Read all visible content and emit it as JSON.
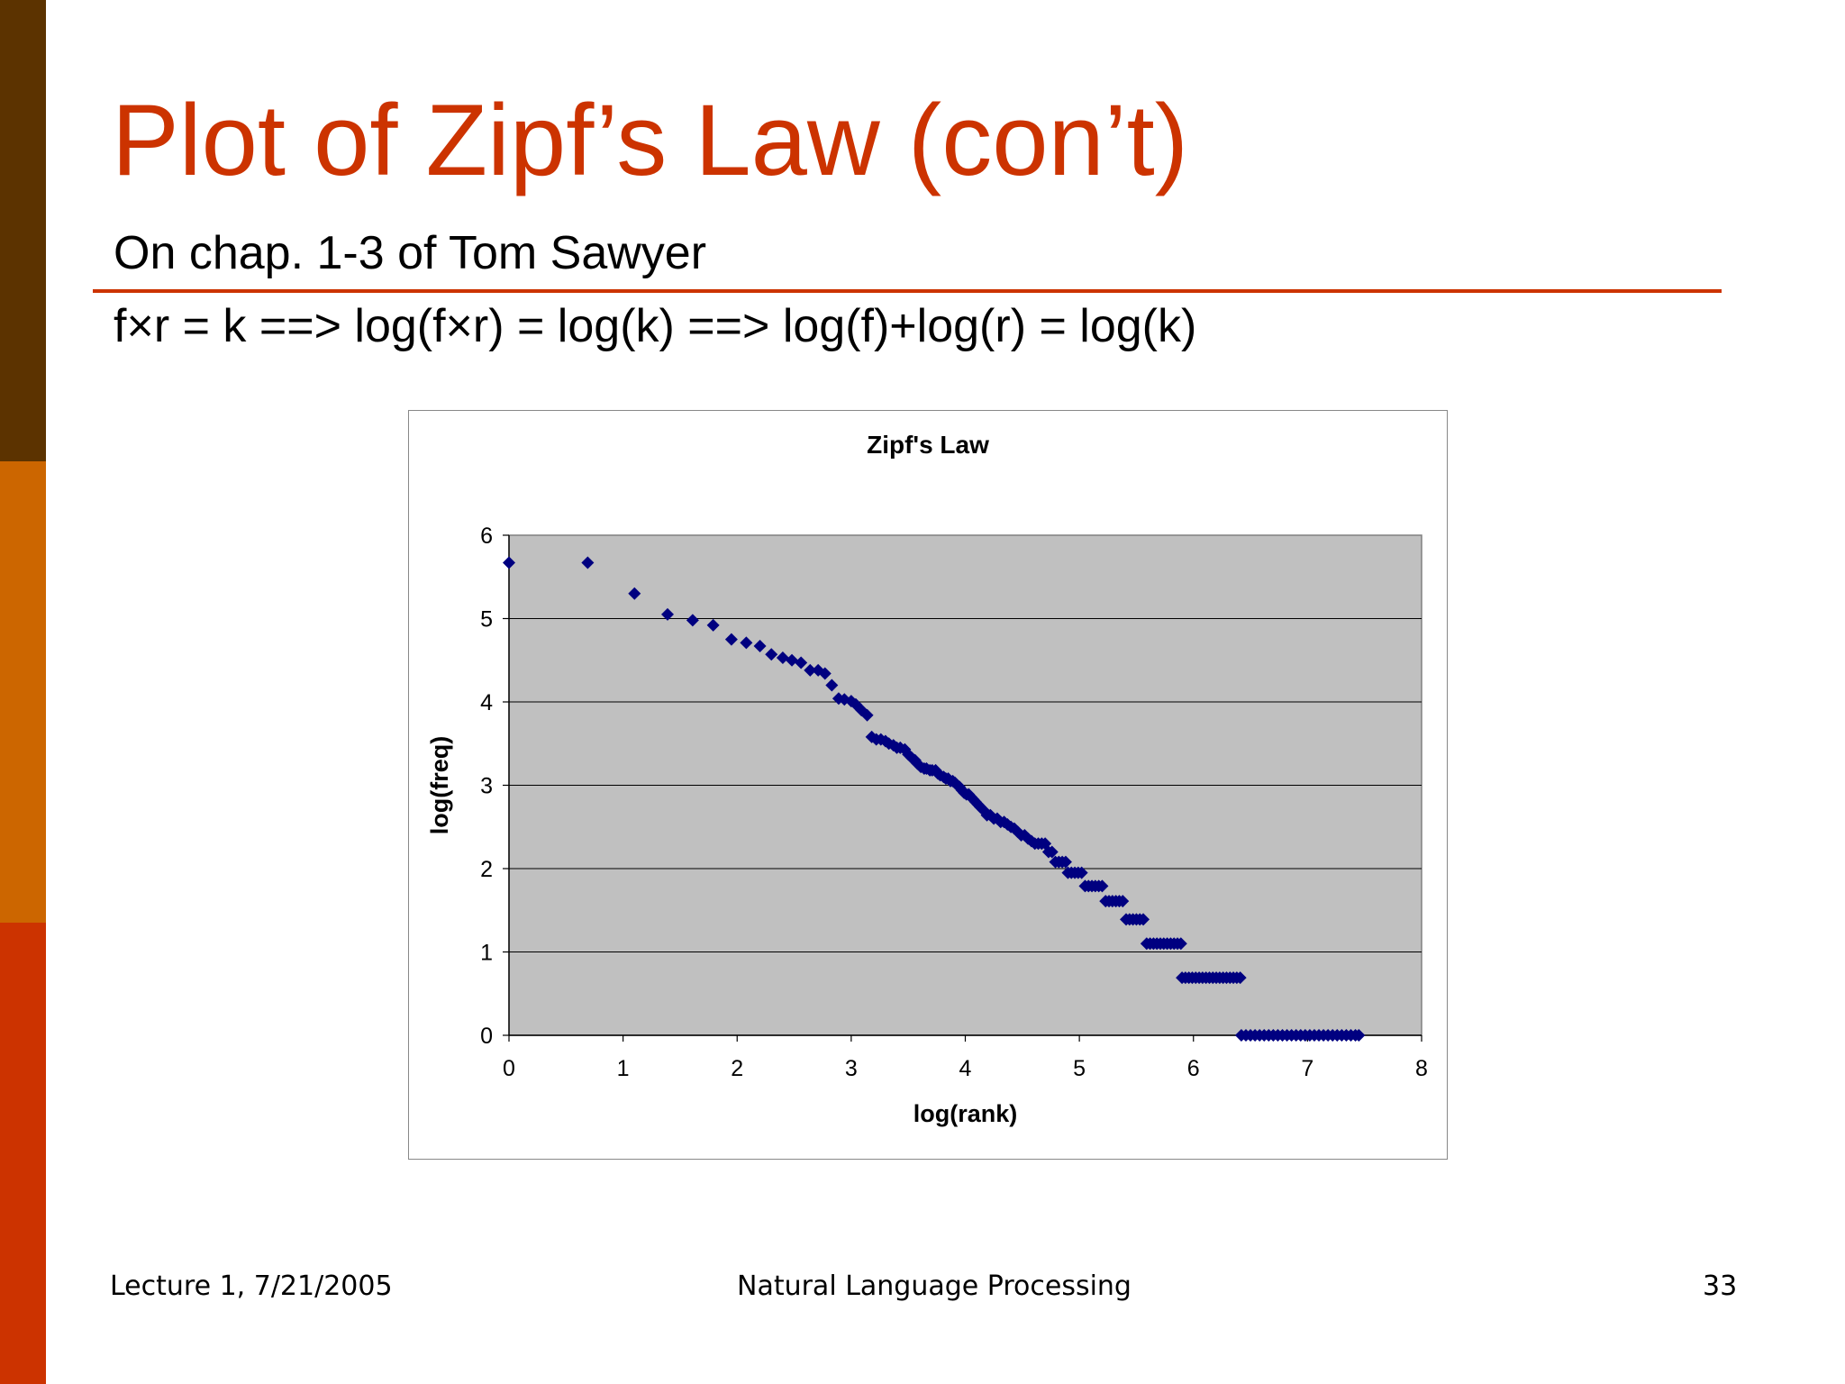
{
  "slide": {
    "title": "Plot of Zipf’s Law (con’t)",
    "subtitle": "On chap. 1-3 of Tom Sawyer",
    "formula": "f×r = k ==> log(f×r) = log(k) ==> log(f)+log(r) = log(k)",
    "footer_left": "Lecture 1, 7/21/2005",
    "footer_center": "Natural Language Processing",
    "page_number": "33"
  },
  "colors": {
    "sidebar_top": "#5c3300",
    "sidebar_middle": "#cc6600",
    "sidebar_bottom": "#cc3300",
    "title": "#cc3300",
    "rule": "#cc3300",
    "plot_bg": "#c0c0c0",
    "marker": "#000080"
  },
  "chart_data": {
    "type": "scatter",
    "title": "Zipf's Law",
    "xlabel": "log(rank)",
    "ylabel": "log(freq)",
    "xlim": [
      0,
      8
    ],
    "ylim": [
      0,
      6
    ],
    "xticks": [
      "0",
      "1",
      "2",
      "3",
      "4",
      "5",
      "6",
      "7",
      "8"
    ],
    "yticks": [
      "0",
      "1",
      "2",
      "3",
      "4",
      "5",
      "6"
    ],
    "grid": true,
    "legend": "none",
    "marker": "diamond",
    "points": [
      [
        0,
        5.67
      ],
      [
        0.69,
        5.67
      ],
      [
        1.1,
        5.3
      ],
      [
        1.39,
        5.05
      ],
      [
        1.61,
        4.98
      ],
      [
        1.79,
        4.92
      ],
      [
        1.95,
        4.75
      ],
      [
        2.08,
        4.71
      ],
      [
        2.2,
        4.67
      ],
      [
        2.3,
        4.57
      ],
      [
        2.4,
        4.53
      ],
      [
        2.48,
        4.5
      ],
      [
        2.56,
        4.47
      ],
      [
        2.64,
        4.38
      ],
      [
        2.71,
        4.38
      ],
      [
        2.77,
        4.34
      ],
      [
        2.83,
        4.2
      ],
      [
        2.89,
        4.04
      ],
      [
        2.94,
        4.03
      ],
      [
        3.0,
        4.01
      ],
      [
        3.04,
        3.97
      ],
      [
        3.09,
        3.9
      ],
      [
        3.14,
        3.84
      ],
      [
        3.18,
        3.58
      ],
      [
        3.22,
        3.55
      ],
      [
        3.26,
        3.55
      ],
      [
        3.3,
        3.53
      ],
      [
        3.33,
        3.5
      ],
      [
        3.37,
        3.48
      ],
      [
        3.4,
        3.45
      ],
      [
        3.43,
        3.45
      ],
      [
        3.47,
        3.43
      ],
      [
        3.5,
        3.37
      ],
      [
        3.53,
        3.33
      ],
      [
        3.56,
        3.3
      ],
      [
        3.58,
        3.26
      ],
      [
        3.61,
        3.22
      ],
      [
        3.64,
        3.2
      ],
      [
        3.66,
        3.2
      ],
      [
        3.69,
        3.18
      ],
      [
        3.71,
        3.18
      ],
      [
        3.74,
        3.18
      ],
      [
        3.76,
        3.14
      ],
      [
        3.78,
        3.12
      ],
      [
        3.81,
        3.1
      ],
      [
        3.83,
        3.08
      ],
      [
        3.85,
        3.08
      ],
      [
        3.87,
        3.05
      ],
      [
        3.89,
        3.05
      ],
      [
        3.91,
        3.03
      ],
      [
        3.93,
        3.0
      ],
      [
        3.95,
        2.98
      ],
      [
        3.97,
        2.94
      ],
      [
        3.99,
        2.91
      ],
      [
        4.01,
        2.89
      ],
      [
        4.03,
        2.89
      ],
      [
        4.05,
        2.86
      ],
      [
        4.07,
        2.83
      ],
      [
        4.09,
        2.8
      ],
      [
        4.11,
        2.77
      ],
      [
        4.13,
        2.74
      ],
      [
        4.16,
        2.7
      ],
      [
        4.19,
        2.64
      ],
      [
        4.22,
        2.64
      ],
      [
        4.25,
        2.6
      ],
      [
        4.28,
        2.6
      ],
      [
        4.31,
        2.56
      ],
      [
        4.34,
        2.56
      ],
      [
        4.37,
        2.53
      ],
      [
        4.4,
        2.5
      ],
      [
        4.43,
        2.48
      ],
      [
        4.46,
        2.44
      ],
      [
        4.49,
        2.4
      ],
      [
        4.52,
        2.4
      ],
      [
        4.55,
        2.36
      ],
      [
        4.58,
        2.33
      ],
      [
        4.61,
        2.3
      ],
      [
        4.64,
        2.3
      ],
      [
        4.67,
        2.3
      ],
      [
        4.7,
        2.3
      ],
      [
        4.73,
        2.2
      ],
      [
        4.76,
        2.2
      ],
      [
        4.79,
        2.08
      ],
      [
        4.82,
        2.08
      ],
      [
        4.85,
        2.08
      ],
      [
        4.88,
        2.08
      ],
      [
        4.9,
        1.95
      ],
      [
        4.93,
        1.95
      ],
      [
        4.96,
        1.95
      ],
      [
        4.99,
        1.95
      ],
      [
        5.02,
        1.95
      ],
      [
        5.05,
        1.79
      ],
      [
        5.08,
        1.79
      ],
      [
        5.11,
        1.79
      ],
      [
        5.14,
        1.79
      ],
      [
        5.17,
        1.79
      ],
      [
        5.2,
        1.79
      ],
      [
        5.23,
        1.61
      ],
      [
        5.26,
        1.61
      ],
      [
        5.29,
        1.61
      ],
      [
        5.32,
        1.61
      ],
      [
        5.35,
        1.61
      ],
      [
        5.38,
        1.61
      ],
      [
        5.41,
        1.39
      ],
      [
        5.44,
        1.39
      ],
      [
        5.47,
        1.39
      ],
      [
        5.5,
        1.39
      ],
      [
        5.53,
        1.39
      ],
      [
        5.56,
        1.39
      ],
      [
        5.59,
        1.1
      ],
      [
        5.62,
        1.1
      ],
      [
        5.65,
        1.1
      ],
      [
        5.68,
        1.1
      ],
      [
        5.71,
        1.1
      ],
      [
        5.74,
        1.1
      ],
      [
        5.77,
        1.1
      ],
      [
        5.8,
        1.1
      ],
      [
        5.83,
        1.1
      ],
      [
        5.86,
        1.1
      ],
      [
        5.89,
        1.1
      ],
      [
        5.9,
        0.69
      ],
      [
        5.93,
        0.69
      ],
      [
        5.96,
        0.69
      ],
      [
        5.99,
        0.69
      ],
      [
        6.02,
        0.69
      ],
      [
        6.05,
        0.69
      ],
      [
        6.08,
        0.69
      ],
      [
        6.11,
        0.69
      ],
      [
        6.14,
        0.69
      ],
      [
        6.17,
        0.69
      ],
      [
        6.2,
        0.69
      ],
      [
        6.23,
        0.69
      ],
      [
        6.26,
        0.69
      ],
      [
        6.29,
        0.69
      ],
      [
        6.32,
        0.69
      ],
      [
        6.35,
        0.69
      ],
      [
        6.38,
        0.69
      ],
      [
        6.41,
        0.69
      ],
      [
        6.42,
        0
      ],
      [
        6.46,
        0
      ],
      [
        6.5,
        0
      ],
      [
        6.54,
        0
      ],
      [
        6.58,
        0
      ],
      [
        6.62,
        0
      ],
      [
        6.66,
        0
      ],
      [
        6.7,
        0
      ],
      [
        6.74,
        0
      ],
      [
        6.78,
        0
      ],
      [
        6.82,
        0
      ],
      [
        6.86,
        0
      ],
      [
        6.9,
        0
      ],
      [
        6.94,
        0
      ],
      [
        6.98,
        0
      ],
      [
        7.02,
        0
      ],
      [
        7.06,
        0
      ],
      [
        7.1,
        0
      ],
      [
        7.14,
        0
      ],
      [
        7.18,
        0
      ],
      [
        7.22,
        0
      ],
      [
        7.26,
        0
      ],
      [
        7.3,
        0
      ],
      [
        7.34,
        0
      ],
      [
        7.38,
        0
      ],
      [
        7.42,
        0
      ],
      [
        7.45,
        0
      ]
    ]
  }
}
